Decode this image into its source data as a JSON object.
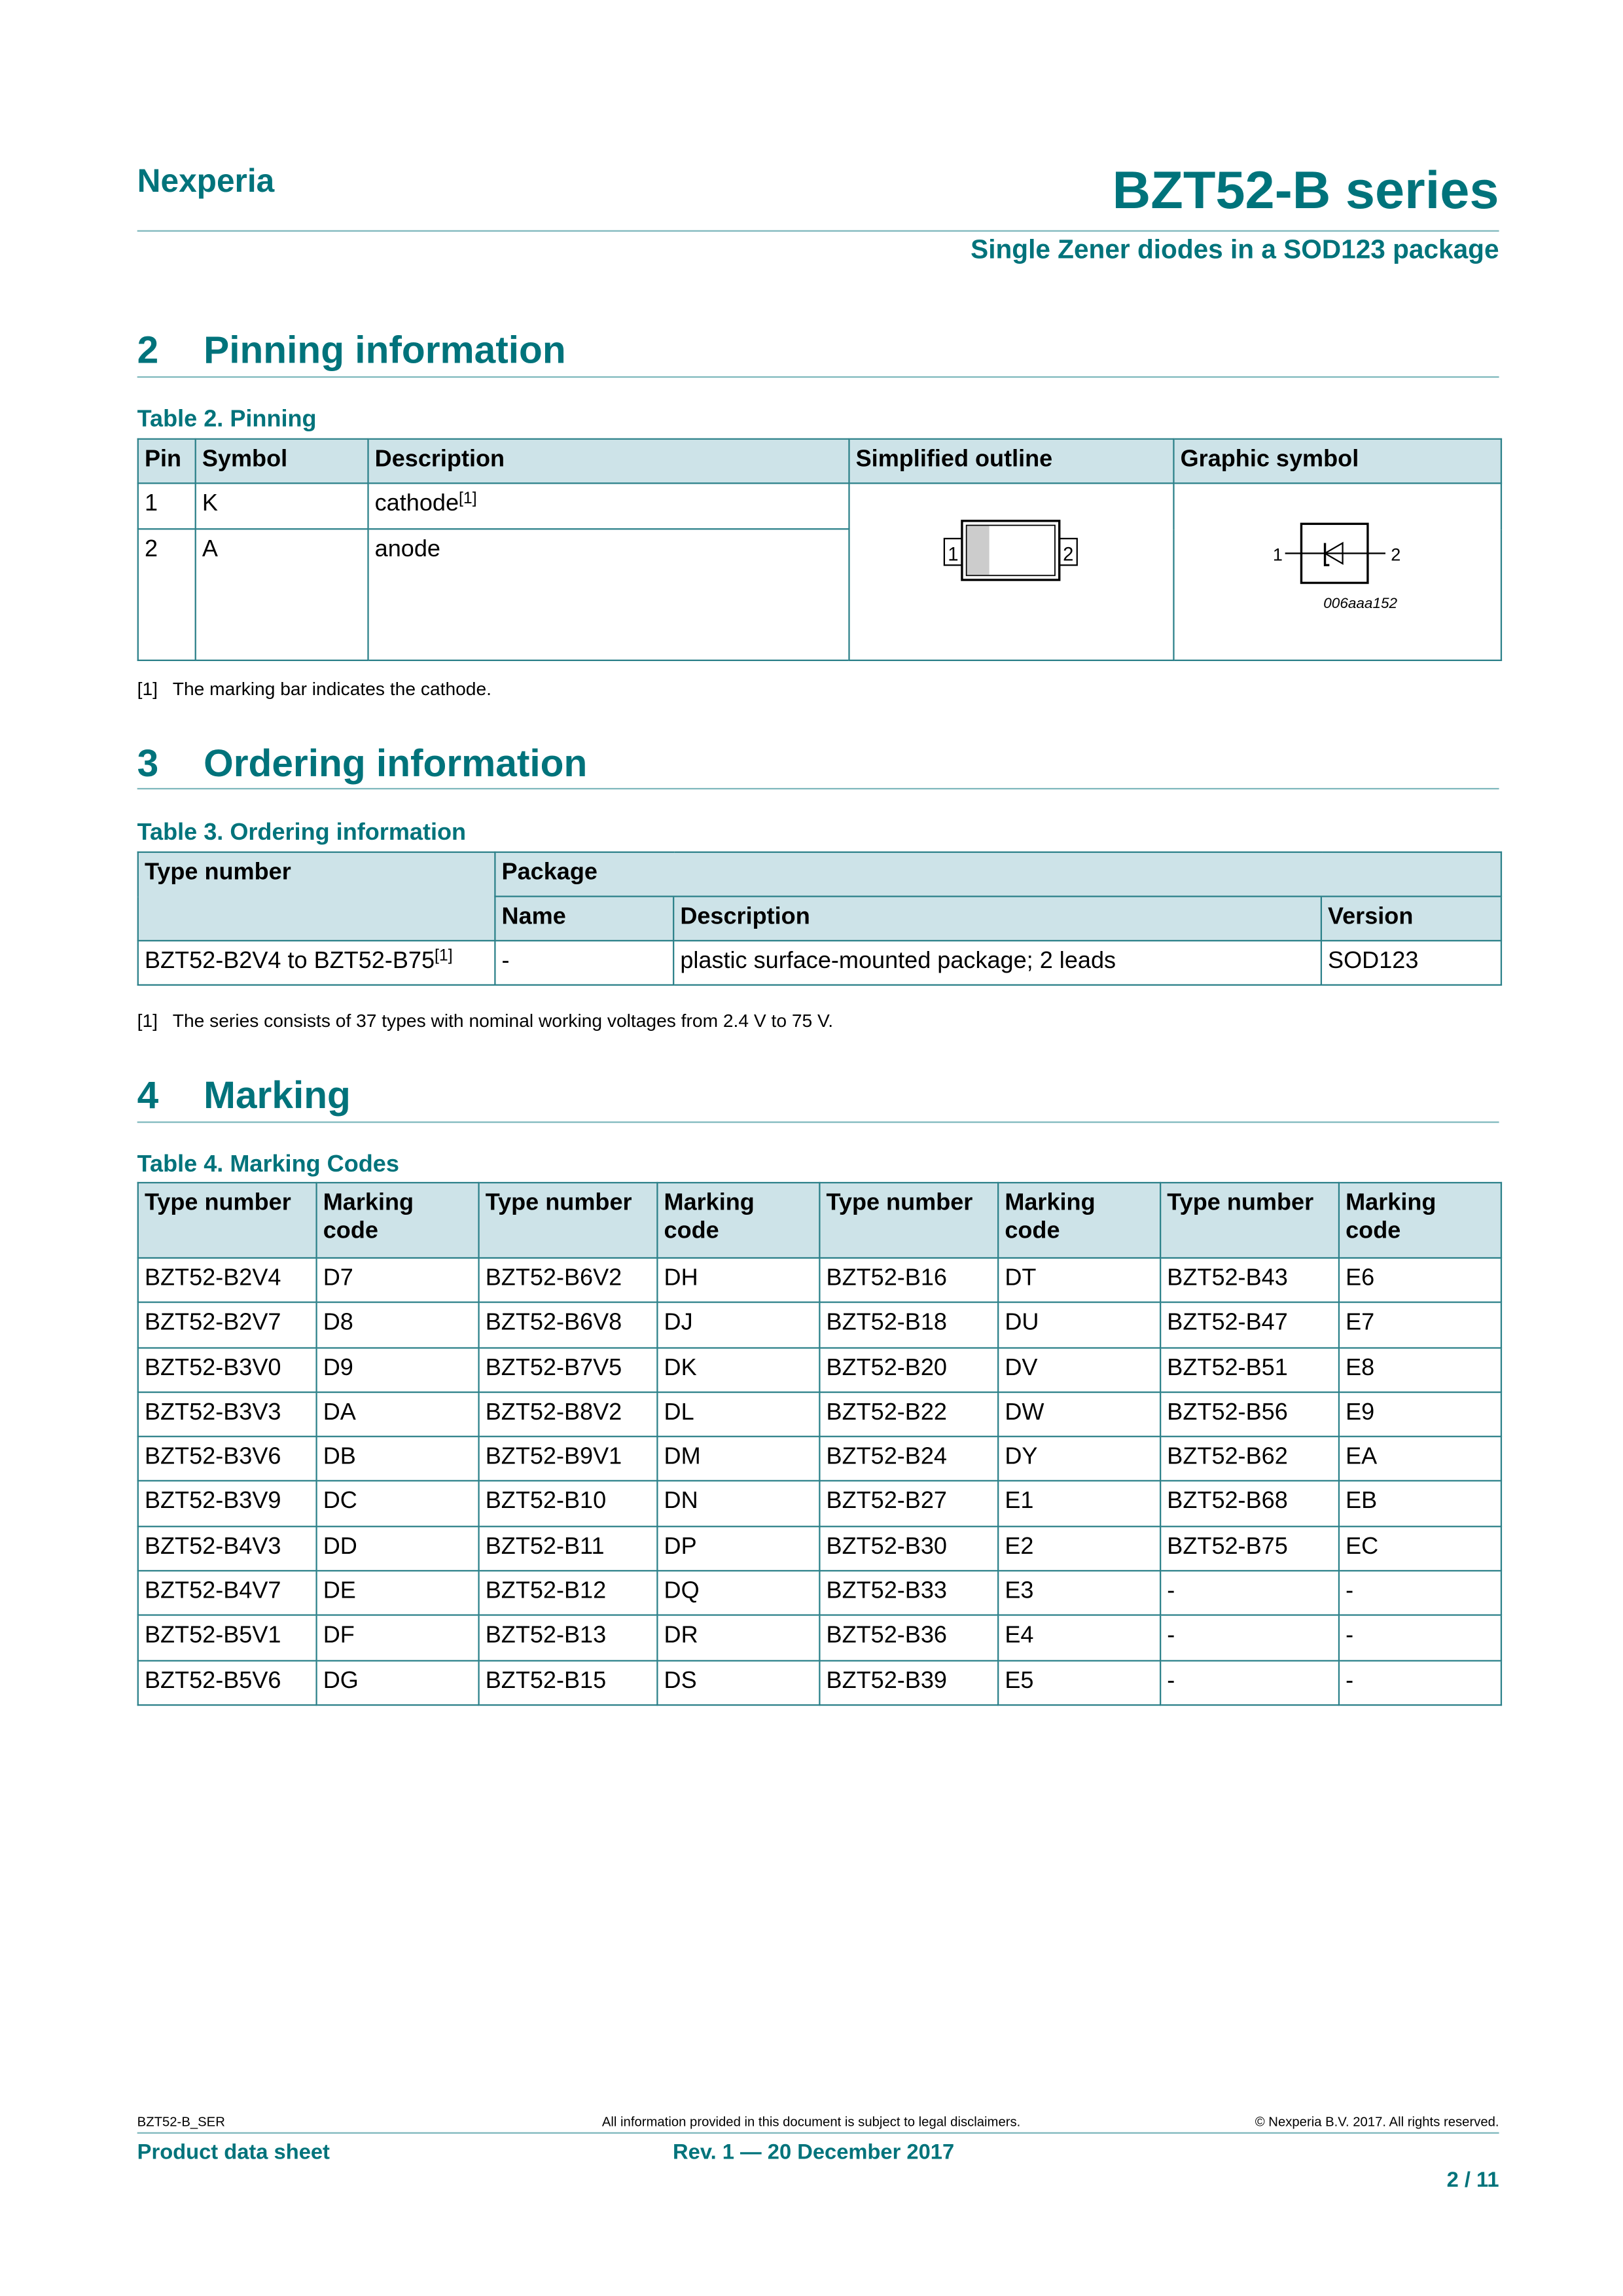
{
  "header": {
    "brand": "Nexperia",
    "title": "BZT52-B series",
    "subtitle": "Single Zener diodes in a SOD123 package"
  },
  "colors": {
    "accent": "#00737b",
    "table_header_bg": "#cde3e8",
    "border": "#2b8089"
  },
  "sections": [
    {
      "num": "2",
      "title": "Pinning information"
    },
    {
      "num": "3",
      "title": "Ordering information"
    },
    {
      "num": "4",
      "title": "Marking"
    }
  ],
  "table2": {
    "caption": "Table 2.  Pinning",
    "headers": [
      "Pin",
      "Symbol",
      "Description",
      "Simplified outline",
      "Graphic symbol"
    ],
    "rows": [
      {
        "pin": "1",
        "symbol": "K",
        "description": "cathode",
        "note": "[1]"
      },
      {
        "pin": "2",
        "symbol": "A",
        "description": "anode"
      }
    ],
    "outline_pins": [
      "1",
      "2"
    ],
    "symbol_pins": [
      "1",
      "2"
    ],
    "symbol_code": "006aaa152",
    "footnote_mark": "[1]",
    "footnote": "The marking bar indicates the cathode."
  },
  "table3": {
    "caption": "Table 3.  Ordering information",
    "headers": {
      "type": "Type number",
      "package": "Package",
      "name": "Name",
      "description": "Description",
      "version": "Version"
    },
    "row": {
      "type": "BZT52-B2V4 to BZT52-B75",
      "note": "[1]",
      "name": "-",
      "description": "plastic surface-mounted package; 2 leads",
      "version": "SOD123"
    },
    "footnote_mark": "[1]",
    "footnote": "The series consists of 37 types with nominal working voltages from 2.4 V to 75 V."
  },
  "table4": {
    "caption": "Table 4.  Marking Codes",
    "headers": [
      "Type number",
      "Marking code",
      "Type number",
      "Marking code",
      "Type number",
      "Marking code",
      "Type number",
      "Marking code"
    ],
    "rows": [
      [
        "BZT52-B2V4",
        "D7",
        "BZT52-B6V2",
        "DH",
        "BZT52-B16",
        "DT",
        "BZT52-B43",
        "E6"
      ],
      [
        "BZT52-B2V7",
        "D8",
        "BZT52-B6V8",
        "DJ",
        "BZT52-B18",
        "DU",
        "BZT52-B47",
        "E7"
      ],
      [
        "BZT52-B3V0",
        "D9",
        "BZT52-B7V5",
        "DK",
        "BZT52-B20",
        "DV",
        "BZT52-B51",
        "E8"
      ],
      [
        "BZT52-B3V3",
        "DA",
        "BZT52-B8V2",
        "DL",
        "BZT52-B22",
        "DW",
        "BZT52-B56",
        "E9"
      ],
      [
        "BZT52-B3V6",
        "DB",
        "BZT52-B9V1",
        "DM",
        "BZT52-B24",
        "DY",
        "BZT52-B62",
        "EA"
      ],
      [
        "BZT52-B3V9",
        "DC",
        "BZT52-B10",
        "DN",
        "BZT52-B27",
        "E1",
        "BZT52-B68",
        "EB"
      ],
      [
        "BZT52-B4V3",
        "DD",
        "BZT52-B11",
        "DP",
        "BZT52-B30",
        "E2",
        "BZT52-B75",
        "EC"
      ],
      [
        "BZT52-B4V7",
        "DE",
        "BZT52-B12",
        "DQ",
        "BZT52-B33",
        "E3",
        "-",
        "-"
      ],
      [
        "BZT52-B5V1",
        "DF",
        "BZT52-B13",
        "DR",
        "BZT52-B36",
        "E4",
        "-",
        "-"
      ],
      [
        "BZT52-B5V6",
        "DG",
        "BZT52-B15",
        "DS",
        "BZT52-B39",
        "E5",
        "-",
        "-"
      ]
    ]
  },
  "footer": {
    "doc_id": "BZT52-B_SER",
    "disclaimer": "All information provided in this document is subject to legal disclaimers.",
    "copyright": "© Nexperia B.V. 2017. All rights reserved.",
    "doc_type": "Product data sheet",
    "revision": "Rev. 1 — 20 December 2017",
    "page": "2 / 11"
  }
}
